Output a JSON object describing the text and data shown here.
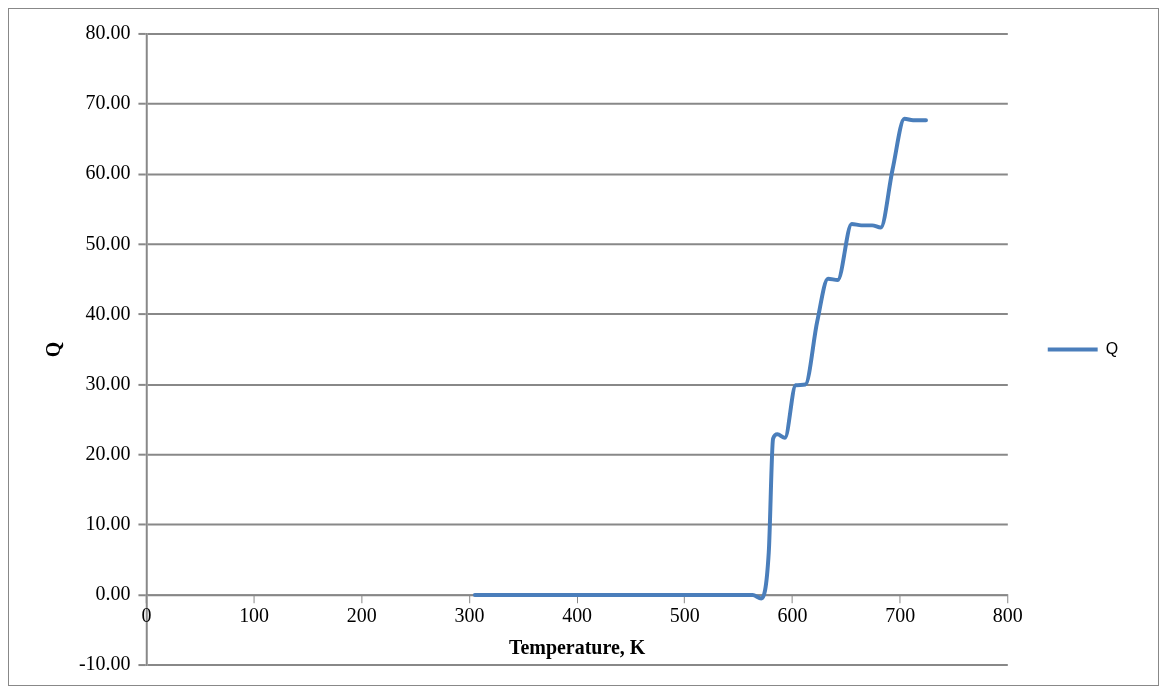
{
  "chart_data": {
    "type": "line",
    "xlabel": "Temperature, K",
    "ylabel": "Q",
    "xlim": [
      0,
      800
    ],
    "xticks": [
      0,
      100,
      200,
      300,
      400,
      500,
      600,
      700,
      800
    ],
    "ylim": [
      -10,
      80
    ],
    "yticks": [
      {
        "value": -10,
        "label": "-10.00"
      },
      {
        "value": 0,
        "label": "0.00"
      },
      {
        "value": 10,
        "label": "10.00"
      },
      {
        "value": 20,
        "label": "20.00"
      },
      {
        "value": 30,
        "label": "30.00"
      },
      {
        "value": 40,
        "label": "40.00"
      },
      {
        "value": 50,
        "label": "50.00"
      },
      {
        "value": 60,
        "label": "60.00"
      },
      {
        "value": 70,
        "label": "70.00"
      },
      {
        "value": 80,
        "label": "80.00"
      }
    ],
    "grid": "y",
    "legend": "right",
    "marker": "none",
    "line_style": "solid",
    "series": [
      {
        "name": "Q",
        "color": "#4a7ebb",
        "x": [
          305,
          350,
          400,
          450,
          500,
          540,
          563,
          571,
          578,
          582,
          586,
          593,
          603,
          612,
          623,
          633,
          642,
          655,
          664,
          674,
          682,
          693,
          704,
          712,
          724
        ],
        "values": [
          0,
          0,
          0,
          0,
          0,
          0,
          0,
          -0.5,
          6.1,
          22.3,
          22.9,
          22.4,
          29.9,
          30,
          39,
          45.1,
          44.9,
          52.9,
          52.7,
          52.7,
          52.4,
          60.7,
          67.9,
          67.7,
          67.7
        ]
      }
    ]
  }
}
